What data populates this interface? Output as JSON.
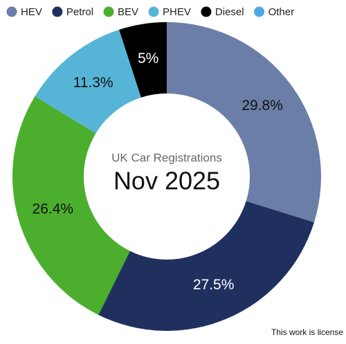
{
  "chart_data": {
    "type": "donut",
    "title": "UK Car Registrations",
    "subtitle": "Nov 2025",
    "footer": "This work is license",
    "categories": [
      "HEV",
      "Petrol",
      "BEV",
      "PHEV",
      "Diesel",
      "Other"
    ],
    "values": [
      29.8,
      27.5,
      26.4,
      11.3,
      5,
      0
    ],
    "value_labels": [
      "29.8%",
      "27.5%",
      "26.4%",
      "11.3%",
      "5%",
      null
    ],
    "colors": [
      "#6a7ea7",
      "#1f305f",
      "#4cae2d",
      "#56b4d7",
      "#000000",
      "#4ea6e8"
    ],
    "legend": "top"
  }
}
